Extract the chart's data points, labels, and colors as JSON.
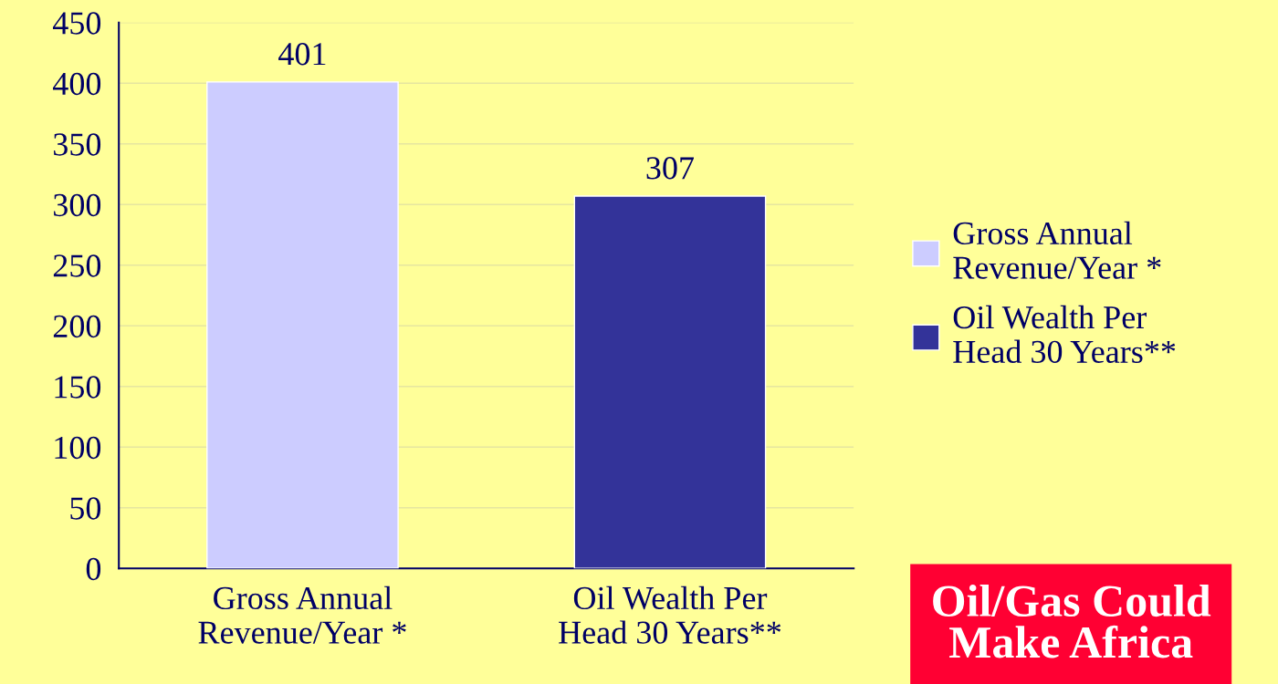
{
  "chart_data": {
    "type": "bar",
    "categories": [
      "Gross Annual\nRevenue/Year *",
      "Oil Wealth Per\nHead 30 Years**"
    ],
    "series": [
      {
        "name": "Gross Annual\nRevenue/Year *",
        "color": "#ccccff",
        "values": [
          401,
          null
        ]
      },
      {
        "name": "Oil Wealth Per\nHead 30 Years**",
        "color": "#333399",
        "values": [
          null,
          307
        ]
      }
    ],
    "ylim": [
      0,
      450
    ],
    "yticks": [
      0,
      50,
      100,
      150,
      200,
      250,
      300,
      350,
      400,
      450
    ],
    "grid": "y",
    "legend": "right",
    "data_labels": true,
    "annotations": [
      "Oil/Gas Could\nMake Africa"
    ]
  }
}
